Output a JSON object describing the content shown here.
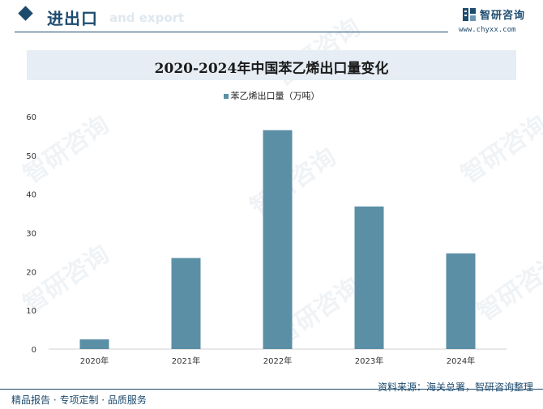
{
  "header": {
    "section_title": "进出口",
    "section_subtitle": "and export",
    "brand_name": "智研咨询",
    "brand_url": "www.chyxx.com"
  },
  "chart_data": {
    "type": "bar",
    "title": "2020-2024年中国苯乙烯出口量变化",
    "legend": [
      "苯乙烯出口量（万吨）"
    ],
    "categories": [
      "2020年",
      "2021年",
      "2022年",
      "2023年",
      "2024年"
    ],
    "series": [
      {
        "name": "苯乙烯出口量（万吨）",
        "values": [
          2.5,
          23.5,
          56.5,
          36.8,
          24.7
        ]
      }
    ],
    "ylim": [
      0,
      60
    ],
    "yticks": [
      0,
      10,
      20,
      30,
      40,
      50,
      60
    ],
    "grid": false,
    "color": "#5b8fa6"
  },
  "watermark": "智研咨询",
  "footer": {
    "left": "精品报告 · 专项定制 · 品质服务",
    "source": "资料来源：海关总署，智研咨询整理"
  }
}
